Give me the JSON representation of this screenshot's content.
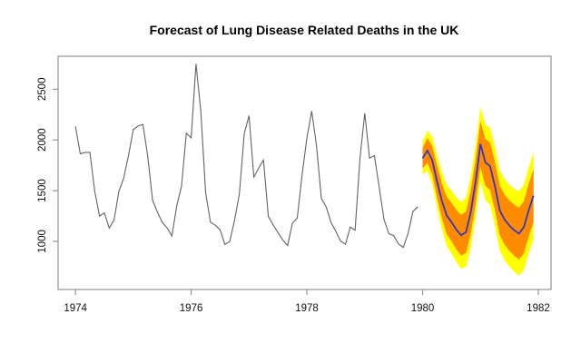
{
  "chart_data": {
    "type": "line",
    "title": "Forecast of Lung Disease Related Deaths in the UK",
    "xlabel": "",
    "ylabel": "",
    "grid": false,
    "legend": "none",
    "xlim": [
      1973.7,
      1982.22
    ],
    "ylim": [
      525,
      2825
    ],
    "x_ticks": [
      1974,
      1976,
      1978,
      1980,
      1982
    ],
    "y_ticks": [
      1000,
      1500,
      2000,
      2500
    ],
    "series": [
      {
        "name": "observed-deaths",
        "start": 1974.0,
        "frequency": 12,
        "values": [
          2134,
          1863,
          1877,
          1877,
          1492,
          1249,
          1280,
          1131,
          1209,
          1492,
          1621,
          1846,
          2103,
          2137,
          2153,
          1833,
          1403,
          1288,
          1186,
          1133,
          1053,
          1347,
          1545,
          2066,
          2020,
          2750,
          2283,
          1479,
          1189,
          1160,
          1113,
          970,
          999,
          1208,
          1467,
          2059,
          2240,
          1634,
          1722,
          1801,
          1246,
          1162,
          1087,
          1013,
          959,
          1179,
          1229,
          1655,
          2019,
          2284,
          1942,
          1423,
          1340,
          1187,
          1098,
          1004,
          970,
          1140,
          1110,
          1812,
          2263,
          1820,
          1846,
          1531,
          1215,
          1075,
          1056,
          975,
          940,
          1081,
          1294,
          1341
        ]
      },
      {
        "name": "forecast-mean",
        "start": 1980.0,
        "frequency": 12,
        "values": [
          1820,
          1895,
          1800,
          1590,
          1400,
          1255,
          1190,
          1115,
          1060,
          1090,
          1290,
          1590,
          1960,
          1780,
          1740,
          1545,
          1305,
          1215,
          1155,
          1110,
          1075,
          1140,
          1305,
          1450
        ]
      }
    ],
    "bands": [
      {
        "name": "95-percent-interval",
        "start": 1980.0,
        "frequency": 12,
        "color_key": "band95",
        "upper": [
          1980,
          2095,
          2030,
          1850,
          1680,
          1555,
          1500,
          1435,
          1390,
          1430,
          1640,
          1950,
          2325,
          2155,
          2120,
          1935,
          1700,
          1615,
          1560,
          1520,
          1490,
          1560,
          1730,
          1880
        ],
        "lower": [
          1660,
          1695,
          1570,
          1330,
          1120,
          955,
          880,
          795,
          730,
          750,
          940,
          1230,
          1595,
          1405,
          1360,
          1155,
          910,
          815,
          750,
          700,
          660,
          720,
          880,
          1020
        ]
      },
      {
        "name": "80-percent-interval",
        "start": 1980.0,
        "frequency": 12,
        "color_key": "band80",
        "upper": [
          1920,
          2020,
          1940,
          1750,
          1570,
          1440,
          1380,
          1310,
          1260,
          1295,
          1505,
          1810,
          2185,
          2010,
          1975,
          1785,
          1548,
          1461,
          1404,
          1362,
          1330,
          1398,
          1566,
          1714
        ],
        "lower": [
          1720,
          1770,
          1660,
          1430,
          1230,
          1070,
          1000,
          920,
          860,
          885,
          1075,
          1370,
          1735,
          1550,
          1505,
          1305,
          1062,
          969,
          906,
          858,
          820,
          882,
          1044,
          1186
        ]
      }
    ]
  },
  "colors": {
    "background": "#FFFFFF",
    "band95": "#FFFF00",
    "band80": "#FF8C00",
    "forecast_line": "#3535C2",
    "history_line": "#626262",
    "axis": "#8A8A8A",
    "tick_label": "#111111",
    "title": "#000000"
  }
}
